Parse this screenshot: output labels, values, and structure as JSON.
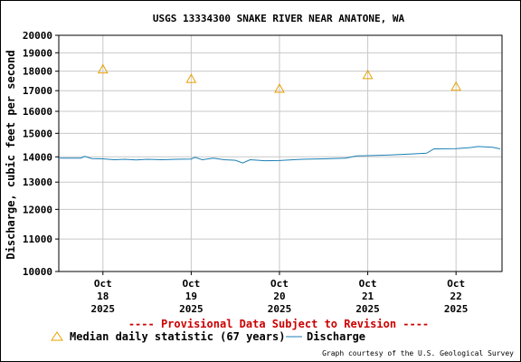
{
  "chart_data": {
    "type": "line",
    "title": "USGS 13334300 SNAKE RIVER NEAR ANATONE, WA",
    "ylabel": "Discharge, cubic feet per second",
    "xlabel": "",
    "ylim": [
      10000,
      20000
    ],
    "y_scale": "log",
    "y_ticks": [
      10000,
      11000,
      12000,
      13000,
      14000,
      15000,
      16000,
      17000,
      18000,
      19000,
      20000
    ],
    "x_range": [
      "2025-10-17T12:00",
      "2025-10-22T12:30"
    ],
    "x_ticks": [
      {
        "date": "2025-10-18",
        "lines": [
          "Oct",
          "18",
          "2025"
        ]
      },
      {
        "date": "2025-10-19",
        "lines": [
          "Oct",
          "19",
          "2025"
        ]
      },
      {
        "date": "2025-10-20",
        "lines": [
          "Oct",
          "20",
          "2025"
        ]
      },
      {
        "date": "2025-10-21",
        "lines": [
          "Oct",
          "21",
          "2025"
        ]
      },
      {
        "date": "2025-10-22",
        "lines": [
          "Oct",
          "22",
          "2025"
        ]
      }
    ],
    "grid": true,
    "legend_position": "bottom",
    "series": [
      {
        "name": "Median daily statistic (67 years)",
        "kind": "marker",
        "color": "#e8a000",
        "points": [
          {
            "x": "2025-10-18",
            "y": 18100
          },
          {
            "x": "2025-10-19",
            "y": 17600
          },
          {
            "x": "2025-10-20",
            "y": 17100
          },
          {
            "x": "2025-10-21",
            "y": 17800
          },
          {
            "x": "2025-10-22",
            "y": 17200
          }
        ]
      },
      {
        "name": "Discharge",
        "kind": "line",
        "color": "#1a7fb5",
        "points": [
          {
            "x": "2025-10-17T12:00",
            "y": 13950
          },
          {
            "x": "2025-10-17T18:00",
            "y": 13950
          },
          {
            "x": "2025-10-17T19:00",
            "y": 14020
          },
          {
            "x": "2025-10-17T21:00",
            "y": 13930
          },
          {
            "x": "2025-10-18T00:00",
            "y": 13920
          },
          {
            "x": "2025-10-18T03:00",
            "y": 13880
          },
          {
            "x": "2025-10-18T06:00",
            "y": 13900
          },
          {
            "x": "2025-10-18T09:00",
            "y": 13870
          },
          {
            "x": "2025-10-18T12:00",
            "y": 13900
          },
          {
            "x": "2025-10-18T16:00",
            "y": 13880
          },
          {
            "x": "2025-10-18T20:00",
            "y": 13900
          },
          {
            "x": "2025-10-19T00:00",
            "y": 13910
          },
          {
            "x": "2025-10-19T01:00",
            "y": 13980
          },
          {
            "x": "2025-10-19T03:00",
            "y": 13880
          },
          {
            "x": "2025-10-19T06:00",
            "y": 13950
          },
          {
            "x": "2025-10-19T09:00",
            "y": 13880
          },
          {
            "x": "2025-10-19T12:00",
            "y": 13860
          },
          {
            "x": "2025-10-19T14:00",
            "y": 13750
          },
          {
            "x": "2025-10-19T16:00",
            "y": 13880
          },
          {
            "x": "2025-10-19T20:00",
            "y": 13840
          },
          {
            "x": "2025-10-20T00:00",
            "y": 13850
          },
          {
            "x": "2025-10-20T06:00",
            "y": 13900
          },
          {
            "x": "2025-10-20T12:00",
            "y": 13920
          },
          {
            "x": "2025-10-20T18:00",
            "y": 13950
          },
          {
            "x": "2025-10-20T21:00",
            "y": 14040
          },
          {
            "x": "2025-10-21T00:00",
            "y": 14050
          },
          {
            "x": "2025-10-21T06:00",
            "y": 14080
          },
          {
            "x": "2025-10-21T12:00",
            "y": 14120
          },
          {
            "x": "2025-10-21T16:00",
            "y": 14150
          },
          {
            "x": "2025-10-21T18:00",
            "y": 14330
          },
          {
            "x": "2025-10-22T00:00",
            "y": 14340
          },
          {
            "x": "2025-10-22T04:00",
            "y": 14390
          },
          {
            "x": "2025-10-22T06:00",
            "y": 14430
          },
          {
            "x": "2025-10-22T10:00",
            "y": 14400
          },
          {
            "x": "2025-10-22T12:00",
            "y": 14330
          }
        ]
      }
    ],
    "annotation": "---- Provisional Data Subject to Revision ----",
    "credit": "Graph courtesy of the U.S. Geological Survey",
    "colors": {
      "grid": "#c8c8c8",
      "provisional": "#cc0000"
    }
  }
}
